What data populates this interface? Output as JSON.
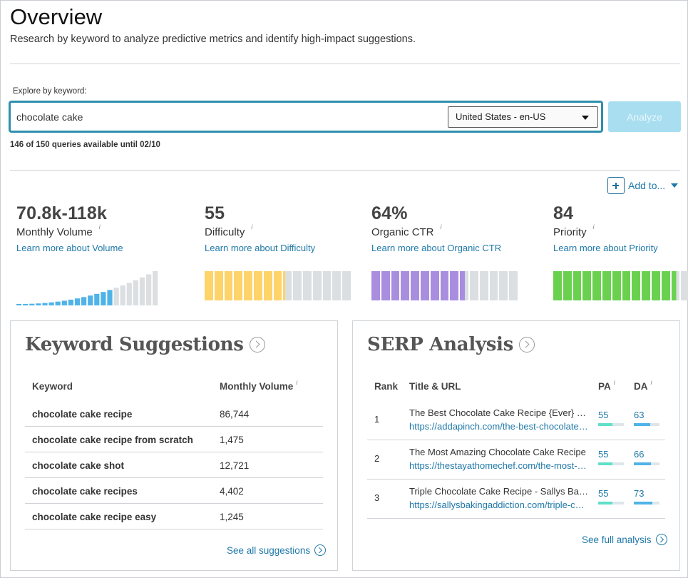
{
  "header": {
    "title": "Overview",
    "subtitle": "Research by keyword to analyze predictive metrics and identify high-impact suggestions."
  },
  "search": {
    "label": "Explore by keyword:",
    "value": "chocolate cake",
    "locale": "United States - en-US",
    "analyze_label": "Analyze",
    "queries_note": "146 of 150 queries available until 02/10"
  },
  "add_to": {
    "label": "Add to..."
  },
  "metrics": {
    "volume": {
      "value": "70.8k-118k",
      "label": "Monthly Volume",
      "info": "i",
      "link": "Learn more about Volume"
    },
    "difficulty": {
      "value": "55",
      "label": "Difficulty",
      "info": "i",
      "link": "Learn more about Difficulty",
      "score": 55,
      "color": "#fdd36a"
    },
    "ctr": {
      "value": "64%",
      "label": "Organic CTR",
      "info": "i",
      "link": "Learn more about Organic CTR",
      "score": 64,
      "color": "#a98ee0"
    },
    "priority": {
      "value": "84",
      "label": "Priority",
      "info": "i",
      "link": "Learn more about Priority",
      "score": 84,
      "color": "#6ad14f"
    }
  },
  "keyword_suggestions": {
    "title": "Keyword Suggestions",
    "col_keyword": "Keyword",
    "col_volume": "Monthly Volume",
    "col_volume_info": "i",
    "rows": [
      {
        "keyword": "chocolate cake recipe",
        "volume": "86,744"
      },
      {
        "keyword": "chocolate cake recipe from scratch",
        "volume": "1,475"
      },
      {
        "keyword": "chocolate cake shot",
        "volume": "12,721"
      },
      {
        "keyword": "chocolate cake recipes",
        "volume": "4,402"
      },
      {
        "keyword": "chocolate cake recipe easy",
        "volume": "1,245"
      }
    ],
    "see_all": "See all suggestions"
  },
  "serp_analysis": {
    "title": "SERP Analysis",
    "col_rank": "Rank",
    "col_title": "Title & URL",
    "col_pa": "PA",
    "col_da": "DA",
    "col_info": "i",
    "rows": [
      {
        "rank": "1",
        "title": "The Best Chocolate Cake Recipe {Ever} - Add a Pinch",
        "url": "https://addapinch.com/the-best-chocolate-cake-recipe-ever/",
        "pa": "55",
        "da": "63"
      },
      {
        "rank": "2",
        "title": "The Most Amazing Chocolate Cake Recipe",
        "url": "https://thestayathomechef.com/the-most-amazing-chocolate-cake/",
        "pa": "55",
        "da": "66"
      },
      {
        "rank": "3",
        "title": "Triple Chocolate Cake Recipe - Sallys Baking Addiction",
        "url": "https://sallysbakingaddiction.com/triple-chocolate-cake/",
        "pa": "55",
        "da": "73"
      }
    ],
    "pa_color": "#5fe0c8",
    "da_color": "#4fb3e8",
    "see_full": "See full analysis"
  }
}
